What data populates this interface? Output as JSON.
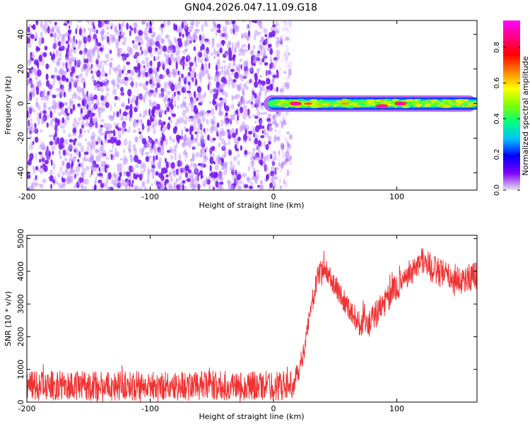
{
  "figure": {
    "title": "GN04.2026.047.11.09.G18"
  },
  "chart_data": [
    {
      "type": "heatmap",
      "xlabel": "Height of straight line (km)",
      "ylabel": "Frequency (Hz)",
      "xlim": [
        -200,
        165
      ],
      "ylim": [
        -50,
        48
      ],
      "xticks": [
        -200,
        -100,
        0,
        100
      ],
      "yticks": [
        -40,
        -20,
        0,
        20,
        40
      ],
      "grid": false,
      "noise_region_x": [
        -200,
        8
      ],
      "signal_band": {
        "x": [
          -8,
          165
        ],
        "freq_center": 0,
        "freq_halfwidth": 3.5
      },
      "hotspots": [
        {
          "x": 18,
          "y": 0,
          "amp": 0.95
        },
        {
          "x": 28,
          "y": 0,
          "amp": 0.7
        },
        {
          "x": 58,
          "y": 0,
          "amp": 0.65
        },
        {
          "x": 88,
          "y": -1.5,
          "amp": 0.95
        },
        {
          "x": 103,
          "y": 0,
          "amp": 0.95
        },
        {
          "x": 140,
          "y": -1.5,
          "amp": 0.6
        }
      ],
      "colorbar": {
        "label": "Normalized spectral amplitude",
        "range": [
          0,
          0.95
        ],
        "ticks": [
          0.0,
          0.2,
          0.4,
          0.6,
          0.8
        ],
        "colors": [
          "#e6e6e6",
          "#8000ff",
          "#0000ff",
          "#00bfff",
          "#00ff80",
          "#80ff00",
          "#ffff00",
          "#ff8000",
          "#ff0000",
          "#ff0080",
          "#ff00ff"
        ]
      }
    },
    {
      "type": "line",
      "xlabel": "Height of straight line (km)",
      "ylabel": "SNR (10 * v/v)",
      "xlim": [
        -200,
        165
      ],
      "ylim": [
        0,
        5100
      ],
      "xticks": [
        -200,
        -100,
        0,
        100
      ],
      "yticks": [
        0,
        1000,
        2000,
        3000,
        4000,
        5000
      ],
      "grid": false,
      "color": "#ee3333",
      "series": [
        {
          "x": [
            -200,
            -150,
            -100,
            -50,
            0,
            15,
            20,
            25,
            30,
            35,
            40,
            45,
            50,
            55,
            60,
            65,
            70,
            75,
            80,
            85,
            90,
            95,
            100,
            105,
            110,
            115,
            120,
            125,
            130,
            135,
            140,
            145,
            150,
            155,
            160,
            165
          ],
          "y": [
            500,
            500,
            500,
            500,
            500,
            500,
            900,
            1600,
            2800,
            3700,
            4150,
            3900,
            3550,
            3250,
            2950,
            2650,
            2400,
            2350,
            2500,
            2800,
            3050,
            3300,
            3500,
            3750,
            3950,
            4100,
            4350,
            4200,
            4050,
            3950,
            3850,
            3800,
            3750,
            3750,
            3850,
            3900
          ],
          "noise_amplitude": [
            450,
            450,
            450,
            450,
            450,
            450,
            300,
            300,
            300,
            350,
            350,
            350,
            350,
            350,
            350,
            350,
            400,
            450,
            450,
            450,
            450,
            450,
            400,
            400,
            400,
            400,
            450,
            450,
            450,
            450,
            450,
            450,
            450,
            450,
            450,
            450
          ]
        }
      ]
    }
  ]
}
